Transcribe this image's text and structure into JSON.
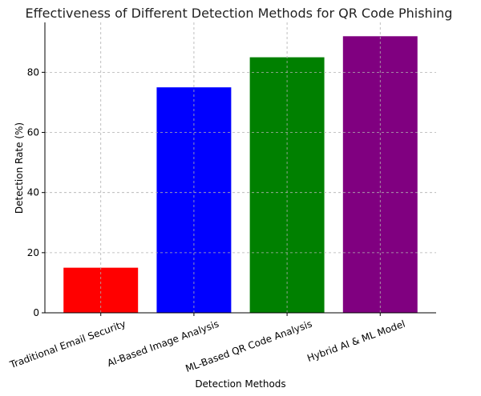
{
  "chart_data": {
    "type": "bar",
    "title": "Effectiveness of Different Detection Methods for QR Code Phishing",
    "xlabel": "Detection Methods",
    "ylabel": "Detection Rate (%)",
    "categories": [
      "Traditional Email Security",
      "AI-Based Image Analysis",
      "ML-Based QR Code Analysis",
      "Hybrid AI & ML Model"
    ],
    "values": [
      15,
      75,
      85,
      92
    ],
    "colors": [
      "#ff0000",
      "#0000ff",
      "#008000",
      "#800080"
    ],
    "ylim": [
      0,
      96.6
    ],
    "yticks": [
      0,
      20,
      40,
      60,
      80
    ],
    "grid": true,
    "grid_style": "dashed",
    "xtick_rotation_deg": 20
  }
}
